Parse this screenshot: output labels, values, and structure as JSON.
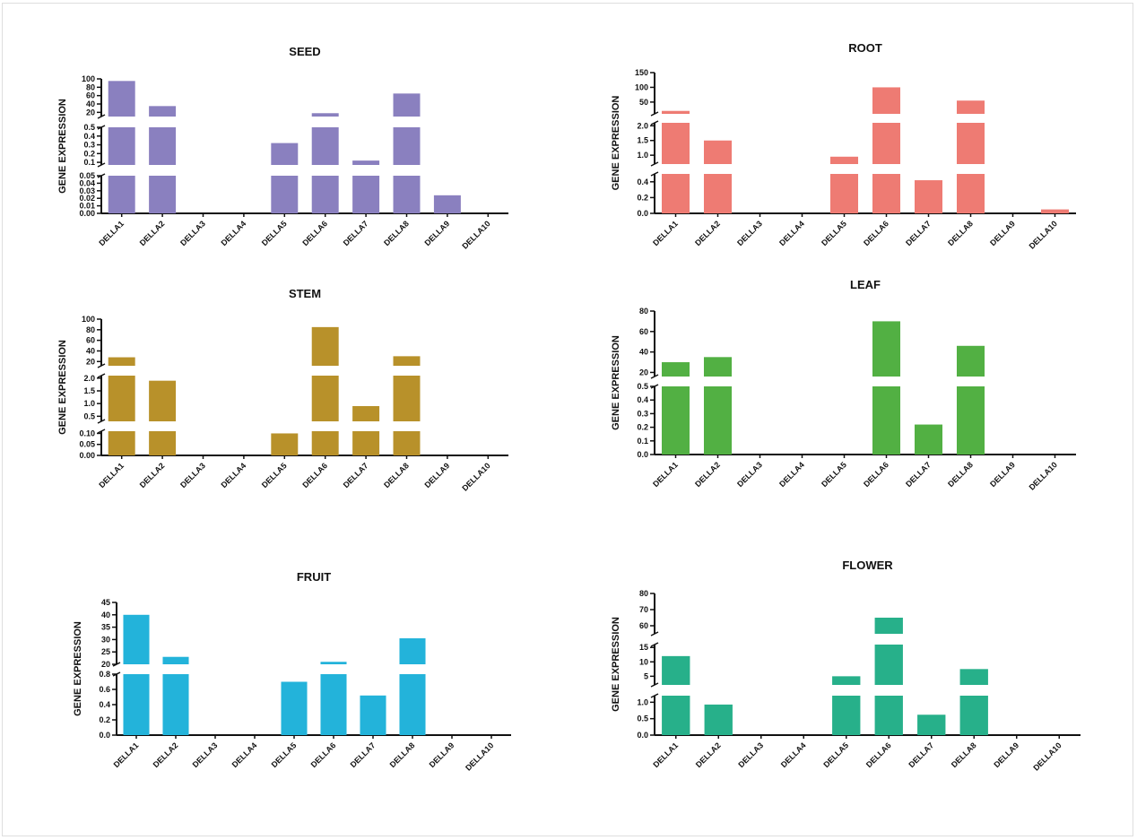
{
  "chart_data": [
    {
      "type": "bar",
      "title": "SEED",
      "ylabel": "GENE EXPRESSION",
      "color": "#8a80bf",
      "categories": [
        "DELLA1",
        "DELLA2",
        "DELLA3",
        "DELLA4",
        "DELLA5",
        "DELLA6",
        "DELLA7",
        "DELLA8",
        "DELLA9",
        "DELLA10"
      ],
      "values": [
        95,
        35,
        0,
        0,
        0.32,
        18,
        0.12,
        65,
        0.024,
        0
      ],
      "segments": [
        {
          "range": [
            0,
            0.05
          ],
          "ticks": [
            "0.00",
            "0.01",
            "0.02",
            "0.03",
            "0.04",
            "0.05"
          ]
        },
        {
          "range": [
            0.07,
            0.5
          ],
          "ticks": [
            "0.1",
            "0.2",
            "0.3",
            "0.4",
            "0.5"
          ]
        },
        {
          "range": [
            10,
            100
          ],
          "ticks": [
            "20",
            "40",
            "60",
            "80",
            "100"
          ]
        }
      ]
    },
    {
      "type": "bar",
      "title": "ROOT",
      "ylabel": "GENE EXPRESSION",
      "color": "#ee7b73",
      "categories": [
        "DELLA1",
        "DELLA2",
        "DELLA3",
        "DELLA4",
        "DELLA5",
        "DELLA6",
        "DELLA7",
        "DELLA8",
        "DELLA9",
        "DELLA10"
      ],
      "values": [
        20,
        1.5,
        0,
        0,
        0.95,
        100,
        0.42,
        55,
        0,
        0.05
      ],
      "segments": [
        {
          "range": [
            0,
            0.5
          ],
          "ticks": [
            "0.0",
            "0.2",
            "0.4"
          ]
        },
        {
          "range": [
            0.7,
            2.1
          ],
          "ticks": [
            "1.0",
            "1.5",
            "2.0"
          ]
        },
        {
          "range": [
            10,
            150
          ],
          "ticks": [
            "50",
            "100",
            "150"
          ]
        }
      ]
    },
    {
      "type": "bar",
      "title": "STEM",
      "ylabel": "GENE EXPRESSION",
      "color": "#b8912a",
      "categories": [
        "DELLA1",
        "DELLA2",
        "DELLA3",
        "DELLA4",
        "DELLA5",
        "DELLA6",
        "DELLA7",
        "DELLA8",
        "DELLA9",
        "DELLA10"
      ],
      "values": [
        28,
        1.9,
        0,
        0,
        0.1,
        85,
        0.9,
        30,
        0,
        0
      ],
      "segments": [
        {
          "range": [
            0,
            0.11
          ],
          "ticks": [
            "0.00",
            "0.05",
            "0.10"
          ]
        },
        {
          "range": [
            0.3,
            2.1
          ],
          "ticks": [
            "0.5",
            "1.0",
            "1.5",
            "2.0"
          ]
        },
        {
          "range": [
            12,
            100
          ],
          "ticks": [
            "20",
            "40",
            "60",
            "80",
            "100"
          ]
        }
      ]
    },
    {
      "type": "bar",
      "title": "LEAF",
      "ylabel": "GENE EXPRESSION",
      "color": "#52b043",
      "categories": [
        "DELLA1",
        "DELLA2",
        "DELLA3",
        "DELLA4",
        "DELLA5",
        "DELLA6",
        "DELLA7",
        "DELLA8",
        "DELLA9",
        "DELLA10"
      ],
      "values": [
        30,
        35,
        0,
        0,
        0,
        70,
        0.22,
        46,
        0,
        0
      ],
      "segments": [
        {
          "range": [
            0,
            0.5
          ],
          "ticks": [
            "0.0",
            "0.1",
            "0.2",
            "0.3",
            "0.4",
            "0.5"
          ]
        },
        {
          "range": [
            16,
            80
          ],
          "ticks": [
            "20",
            "40",
            "60",
            "80"
          ]
        }
      ]
    },
    {
      "type": "bar",
      "title": "FRUIT",
      "ylabel": "GENE EXPRESSION",
      "color": "#23b3da",
      "categories": [
        "DELLA1",
        "DELLA2",
        "DELLA3",
        "DELLA4",
        "DELLA5",
        "DELLA6",
        "DELLA7",
        "DELLA8",
        "DELLA9",
        "DELLA10"
      ],
      "values": [
        40,
        23,
        0,
        0,
        0.7,
        21,
        0.52,
        30.5,
        0,
        0
      ],
      "segments": [
        {
          "range": [
            0,
            0.8
          ],
          "ticks": [
            "0.0",
            "0.2",
            "0.4",
            "0.6",
            "0.8"
          ]
        },
        {
          "range": [
            20,
            45
          ],
          "ticks": [
            "20",
            "25",
            "30",
            "35",
            "40",
            "45"
          ]
        }
      ]
    },
    {
      "type": "bar",
      "title": "FLOWER",
      "ylabel": "GENE EXPRESSION",
      "color": "#27b08a",
      "categories": [
        "DELLA1",
        "DELLA2",
        "DELLA3",
        "DELLA4",
        "DELLA5",
        "DELLA6",
        "DELLA7",
        "DELLA8",
        "DELLA9",
        "DELLA10"
      ],
      "values": [
        12,
        0.93,
        0,
        0,
        5,
        65,
        0.62,
        7.5,
        0,
        0
      ],
      "segments": [
        {
          "range": [
            0,
            1.2
          ],
          "ticks": [
            "0.0",
            "0.5",
            "1.0"
          ]
        },
        {
          "range": [
            2,
            16
          ],
          "ticks": [
            "5",
            "10",
            "15"
          ]
        },
        {
          "range": [
            55,
            80
          ],
          "ticks": [
            "60",
            "70",
            "80"
          ]
        }
      ]
    }
  ]
}
